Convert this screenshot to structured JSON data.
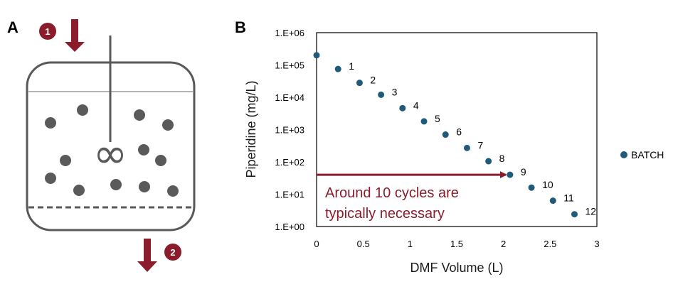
{
  "panels": {
    "a_label": "A",
    "b_label": "B"
  },
  "schematic": {
    "step_in": "1",
    "step_out": "2",
    "stirrer_symbol": "∞"
  },
  "colors": {
    "marker": "#1f5a7a",
    "accent": "#8a1c2c",
    "vessel": "#595959",
    "particle": "#5a5a5a"
  },
  "chart_data": {
    "type": "scatter",
    "xlabel": "DMF Volume (L)",
    "ylabel": "Piperidine (mg/L)",
    "x_ticks": [
      "0",
      "0.5",
      "1",
      "1.5",
      "2",
      "2.5",
      "3"
    ],
    "x_tick_values": [
      0,
      0.5,
      1,
      1.5,
      2,
      2.5,
      3
    ],
    "xlim": [
      0,
      3
    ],
    "y_scale": "log",
    "ylim": [
      1,
      1000000
    ],
    "y_ticks": [
      "1.E+00",
      "1.E+01",
      "1.E+02",
      "1.E+03",
      "1.E+04",
      "1.E+05",
      "1.E+06"
    ],
    "y_tick_values": [
      1,
      10,
      100,
      1000,
      10000,
      100000,
      1000000
    ],
    "legend_position": "right",
    "series": [
      {
        "name": "BATCH",
        "x": [
          0,
          0.23,
          0.46,
          0.69,
          0.92,
          1.15,
          1.38,
          1.61,
          1.84,
          2.07,
          2.3,
          2.53,
          2.76
        ],
        "y": [
          200000,
          75000,
          28000,
          12000,
          4600,
          1800,
          700,
          270,
          105,
          40,
          16,
          6.3,
          2.4
        ],
        "labels": [
          "",
          "1",
          "2",
          "3",
          "4",
          "5",
          "6",
          "7",
          "8",
          "9",
          "10",
          "11",
          "12"
        ]
      }
    ],
    "annotation": {
      "line1": "Around 10 cycles are",
      "line2": "typically necessary",
      "arrow_from_x": 0,
      "arrow_to_x": 2.07,
      "arrow_y": 40
    }
  }
}
